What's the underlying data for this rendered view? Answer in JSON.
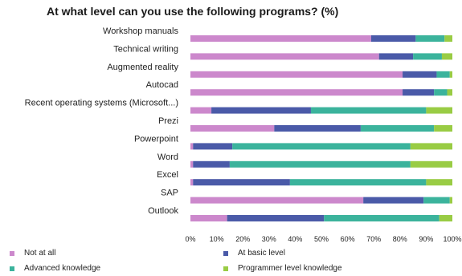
{
  "chart_data": {
    "type": "bar",
    "orientation": "horizontal",
    "stacked": true,
    "title": "At what level can you use the following programs? (%)",
    "xlim": [
      0,
      100
    ],
    "x_ticks": [
      "0%",
      "10%",
      "20%",
      "30%",
      "40%",
      "50%",
      "60%",
      "70%",
      "80%",
      "90%",
      "100%"
    ],
    "categories": [
      "Workshop manuals",
      "Technical writing",
      "Augmented reality",
      "Autocad",
      "Recent operating systems (Microsoft...)",
      "Prezi",
      "Powerpoint",
      "Word",
      "Excel",
      "SAP",
      "Outlook"
    ],
    "series": [
      {
        "name": "Not at all",
        "color": "#cc88cc",
        "values": [
          69,
          72,
          81,
          81,
          8,
          32,
          1,
          1,
          1,
          66,
          14
        ]
      },
      {
        "name": "At basic level",
        "color": "#4a5aa8",
        "values": [
          17,
          13,
          13,
          12,
          38,
          33,
          15,
          14,
          37,
          23,
          37
        ]
      },
      {
        "name": "Advanced knowledge",
        "color": "#3bb39c",
        "values": [
          11,
          11,
          5,
          5,
          44,
          28,
          68,
          69,
          52,
          10,
          44
        ]
      },
      {
        "name": "Programmer level knowledge",
        "color": "#99cc44",
        "values": [
          3,
          4,
          1,
          2,
          10,
          7,
          16,
          16,
          10,
          1,
          5
        ]
      }
    ],
    "legend_position": "bottom",
    "grid": false
  }
}
